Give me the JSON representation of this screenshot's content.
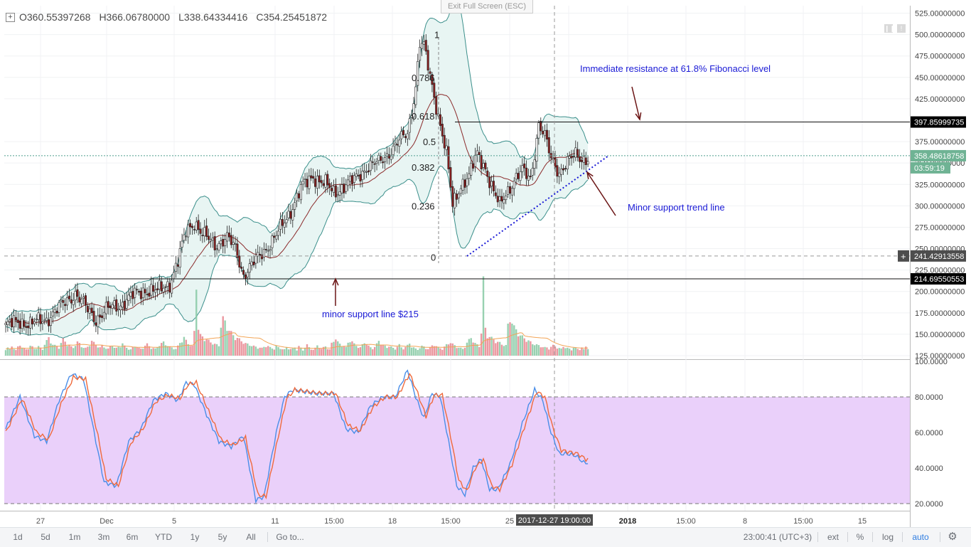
{
  "window": {
    "exit_fullscreen": "Exit Full Screen (ESC)"
  },
  "ohlc": {
    "o": "O360.55397268",
    "h": "H366.06780000",
    "l": "L338.64334416",
    "c": "C354.25451872",
    "expand_icon": "plus-box-icon"
  },
  "annotations": {
    "resistance": "Immediate resistance at 61.8% Fibonacci level",
    "trend": "Minor support trend line",
    "support": "minor support  line $215"
  },
  "fib_labels": [
    "1",
    "0.786",
    "0.618",
    "0.5",
    "0.382",
    "0.236",
    "0"
  ],
  "price_labels": {
    "resistance": "397.85999735",
    "current": "358.48618758",
    "countdown": "03:59:19",
    "crosshair": "241.42913558",
    "support": "214.69550553"
  },
  "x_crosshair_label": "2017-12-27 19:00:00",
  "toolbar": {
    "ranges": [
      "1d",
      "5d",
      "1m",
      "3m",
      "6m",
      "YTD",
      "1y",
      "5y",
      "All"
    ],
    "goto": "Go to...",
    "clock": "23:00:41 (UTC+3)",
    "ext": "ext",
    "percent": "%",
    "log": "log",
    "auto": "auto",
    "settings_icon": "gear-icon"
  },
  "colors": {
    "bull": "#86c9a3",
    "bear": "#e8868f",
    "bollinger_fill": "#e8f5f3",
    "bollinger_line": "#3b8f8b",
    "stoch_band": "#e9cdfa",
    "stoch_k": "#4a8ee8",
    "stoch_d": "#ef6a3c",
    "annotation": "#1a1ad6",
    "arrow": "#6b1515"
  },
  "chart_data": [
    {
      "type": "candlestick",
      "title": "",
      "ylim": [
        125,
        525
      ],
      "y_ticks": [
        {
          "v": 525,
          "t": "525.00000000"
        },
        {
          "v": 500,
          "t": "500.00000000"
        },
        {
          "v": 475,
          "t": "475.00000000"
        },
        {
          "v": 450,
          "t": "450.00000000"
        },
        {
          "v": 425,
          "t": "425.00000000"
        },
        {
          "v": 375,
          "t": "375.00000000"
        },
        {
          "v": 350,
          "t": "350.00000000"
        },
        {
          "v": 325,
          "t": "325.00000000"
        },
        {
          "v": 300,
          "t": "300.00000000"
        },
        {
          "v": 275,
          "t": "275.00000000"
        },
        {
          "v": 250,
          "t": "250.00000000"
        },
        {
          "v": 225,
          "t": "225.00000000"
        },
        {
          "v": 200,
          "t": "200.00000000"
        },
        {
          "v": 175,
          "t": "175.00000000"
        },
        {
          "v": 150,
          "t": "150.00000000"
        },
        {
          "v": 125,
          "t": "125.00000000"
        }
      ],
      "x_ticks": [
        "27",
        "Dec",
        "5",
        "11",
        "15:00",
        "18",
        "15:00",
        "25",
        "2018",
        "15:00",
        "8",
        "15:00",
        "15"
      ],
      "fibonacci": [
        {
          "level": "1",
          "price": 500
        },
        {
          "level": "0.786",
          "price": 450
        },
        {
          "level": "0.618",
          "price": 405
        },
        {
          "level": "0.5",
          "price": 375
        },
        {
          "level": "0.382",
          "price": 345
        },
        {
          "level": "0.236",
          "price": 300
        },
        {
          "level": "0",
          "price": 240
        }
      ],
      "horizontal_lines": [
        397.86,
        214.7
      ],
      "current_price": 358.49,
      "crosshair_price": 241.43,
      "price_anchors": [
        [
          0,
          160
        ],
        [
          7,
          165
        ],
        [
          12,
          162
        ],
        [
          20,
          168
        ],
        [
          28,
          185
        ],
        [
          34,
          198
        ],
        [
          40,
          178
        ],
        [
          44,
          168
        ],
        [
          50,
          180
        ],
        [
          56,
          185
        ],
        [
          62,
          195
        ],
        [
          68,
          202
        ],
        [
          74,
          200
        ],
        [
          80,
          210
        ],
        [
          84,
          235
        ],
        [
          88,
          270
        ],
        [
          92,
          282
        ],
        [
          96,
          266
        ],
        [
          102,
          255
        ],
        [
          108,
          262
        ],
        [
          112,
          250
        ],
        [
          116,
          220
        ],
        [
          120,
          230
        ],
        [
          126,
          248
        ],
        [
          132,
          265
        ],
        [
          138,
          290
        ],
        [
          144,
          320
        ],
        [
          150,
          335
        ],
        [
          156,
          325
        ],
        [
          160,
          315
        ],
        [
          164,
          322
        ],
        [
          170,
          330
        ],
        [
          176,
          345
        ],
        [
          182,
          350
        ],
        [
          186,
          360
        ],
        [
          190,
          370
        ],
        [
          196,
          385
        ],
        [
          200,
          440
        ],
        [
          202,
          490
        ],
        [
          204,
          485
        ],
        [
          208,
          440
        ],
        [
          212,
          395
        ],
        [
          215,
          360
        ],
        [
          218,
          300
        ],
        [
          222,
          325
        ],
        [
          226,
          335
        ],
        [
          230,
          360
        ],
        [
          234,
          345
        ],
        [
          238,
          315
        ],
        [
          241,
          300
        ],
        [
          244,
          315
        ],
        [
          248,
          330
        ],
        [
          252,
          340
        ],
        [
          256,
          332
        ],
        [
          260,
          395
        ],
        [
          263,
          380
        ],
        [
          266,
          355
        ],
        [
          270,
          340
        ],
        [
          274,
          350
        ],
        [
          278,
          360
        ],
        [
          282,
          355
        ]
      ],
      "volume_ylim": [
        0,
        120
      ],
      "volume_values": [
        10,
        12,
        9,
        14,
        11,
        8,
        13,
        16,
        12,
        10,
        9,
        11,
        15,
        13,
        10,
        12,
        14,
        11,
        9,
        18,
        22,
        26,
        20,
        17,
        15,
        14,
        12,
        19,
        24,
        21,
        17,
        15,
        13,
        12,
        16,
        20,
        18,
        14,
        12,
        11,
        13,
        17,
        22,
        19,
        16,
        14,
        12,
        15,
        13,
        11,
        10,
        14,
        16,
        12,
        11,
        13,
        15,
        18,
        14,
        12,
        10,
        9,
        12,
        14,
        13,
        11,
        10,
        12,
        15,
        17,
        14,
        12,
        11,
        10,
        13,
        16,
        18,
        20,
        17,
        15,
        13,
        12,
        11,
        10,
        14,
        19,
        23,
        27,
        22,
        18,
        16,
        14,
        35,
        110,
        40,
        30,
        28,
        26,
        24,
        22,
        20,
        19,
        17,
        16,
        15,
        45,
        55,
        50,
        42,
        38,
        34,
        30,
        28,
        26,
        24,
        22,
        20,
        18,
        17,
        16,
        15,
        14,
        13,
        12,
        12,
        11,
        13,
        15,
        14,
        12,
        11,
        10,
        14,
        12,
        11,
        10,
        9,
        12,
        11,
        10
      ],
      "series": [
        {
          "name": "",
          "kind": "stochastic_k",
          "color": "#4a8ee8",
          "anchors": [
            [
              0,
              62
            ],
            [
              7,
              80
            ],
            [
              14,
              58
            ],
            [
              20,
              55
            ],
            [
              26,
              78
            ],
            [
              32,
              93
            ],
            [
              38,
              90
            ],
            [
              44,
              55
            ],
            [
              48,
              32
            ],
            [
              54,
              30
            ],
            [
              60,
              55
            ],
            [
              66,
              62
            ],
            [
              72,
              78
            ],
            [
              78,
              82
            ],
            [
              84,
              78
            ],
            [
              88,
              88
            ],
            [
              92,
              87
            ],
            [
              98,
              70
            ],
            [
              104,
              55
            ],
            [
              110,
              52
            ],
            [
              116,
              58
            ],
            [
              122,
              22
            ],
            [
              126,
              24
            ],
            [
              132,
              60
            ],
            [
              136,
              80
            ],
            [
              140,
              84
            ],
            [
              146,
              83
            ],
            [
              152,
              82
            ],
            [
              160,
              82
            ],
            [
              166,
              62
            ],
            [
              172,
              60
            ],
            [
              178,
              75
            ],
            [
              184,
              80
            ],
            [
              190,
              80
            ],
            [
              196,
              95
            ],
            [
              200,
              80
            ],
            [
              204,
              68
            ],
            [
              208,
              82
            ],
            [
              212,
              80
            ],
            [
              216,
              55
            ],
            [
              220,
              30
            ],
            [
              224,
              25
            ],
            [
              228,
              40
            ],
            [
              232,
              45
            ],
            [
              236,
              28
            ],
            [
              240,
              28
            ],
            [
              246,
              42
            ],
            [
              252,
              65
            ],
            [
              258,
              84
            ],
            [
              262,
              78
            ],
            [
              266,
              60
            ],
            [
              270,
              48
            ],
            [
              274,
              48
            ],
            [
              278,
              47
            ],
            [
              282,
              43
            ]
          ]
        },
        {
          "name": "",
          "kind": "stochastic_d",
          "color": "#ef6a3c",
          "anchors": [
            [
              0,
              60
            ],
            [
              8,
              79
            ],
            [
              15,
              60
            ],
            [
              21,
              56
            ],
            [
              27,
              76
            ],
            [
              33,
              91
            ],
            [
              39,
              90
            ],
            [
              45,
              58
            ],
            [
              49,
              34
            ],
            [
              55,
              30
            ],
            [
              61,
              54
            ],
            [
              67,
              62
            ],
            [
              73,
              77
            ],
            [
              79,
              81
            ],
            [
              85,
              79
            ],
            [
              89,
              87
            ],
            [
              93,
              88
            ],
            [
              99,
              72
            ],
            [
              105,
              56
            ],
            [
              111,
              53
            ],
            [
              117,
              57
            ],
            [
              123,
              25
            ],
            [
              127,
              24
            ],
            [
              133,
              58
            ],
            [
              137,
              79
            ],
            [
              141,
              84
            ],
            [
              147,
              83
            ],
            [
              153,
              82
            ],
            [
              161,
              82
            ],
            [
              167,
              64
            ],
            [
              173,
              61
            ],
            [
              179,
              74
            ],
            [
              185,
              80
            ],
            [
              191,
              80
            ],
            [
              197,
              93
            ],
            [
              201,
              82
            ],
            [
              205,
              69
            ],
            [
              209,
              81
            ],
            [
              213,
              81
            ],
            [
              217,
              58
            ],
            [
              221,
              33
            ],
            [
              225,
              27
            ],
            [
              229,
              40
            ],
            [
              233,
              45
            ],
            [
              237,
              30
            ],
            [
              241,
              28
            ],
            [
              247,
              42
            ],
            [
              253,
              63
            ],
            [
              259,
              83
            ],
            [
              263,
              80
            ],
            [
              267,
              62
            ],
            [
              271,
              50
            ],
            [
              275,
              49
            ],
            [
              279,
              48
            ],
            [
              283,
              45
            ]
          ]
        }
      ],
      "stochastic_ylim": [
        15,
        100
      ],
      "stochastic_ticks": [
        {
          "v": 100,
          "t": "100.0000"
        },
        {
          "v": 80,
          "t": "80.0000"
        },
        {
          "v": 60,
          "t": "60.0000"
        },
        {
          "v": 40,
          "t": "40.0000"
        },
        {
          "v": 20,
          "t": "20.0000"
        }
      ],
      "stochastic_band": [
        20,
        80
      ],
      "grid": true
    }
  ]
}
